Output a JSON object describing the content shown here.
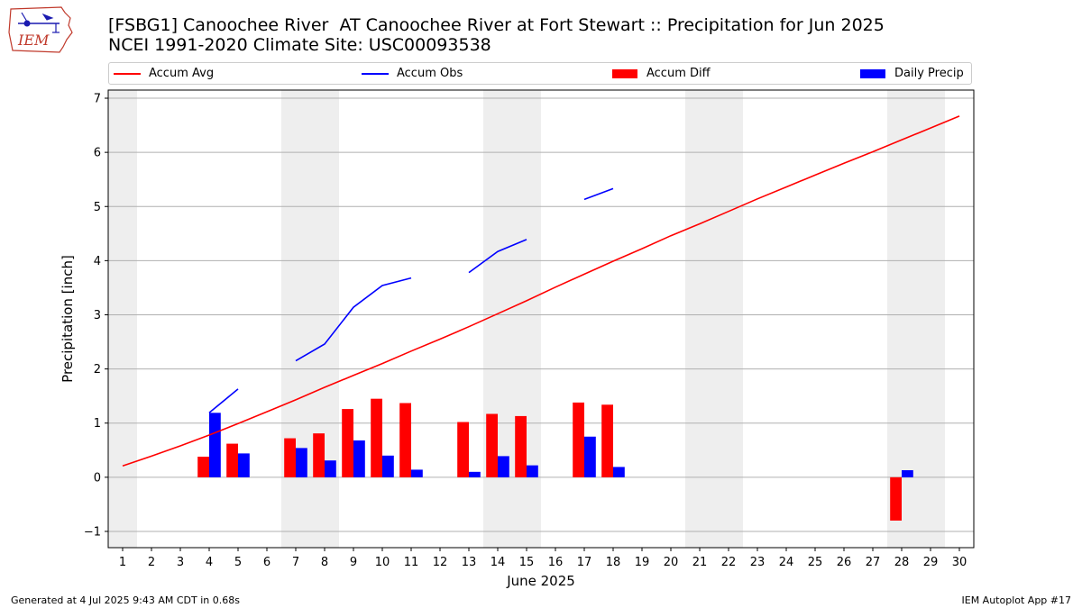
{
  "header": {
    "title_line1": "[FSBG1] Canoochee River  AT Canoochee River at Fort Stewart :: Precipitation for Jun 2025",
    "title_line2": "NCEI 1991-2020 Climate Site: USC00093538"
  },
  "logo": {
    "text": "IEM"
  },
  "footer": {
    "left": "Generated at 4 Jul 2025 9:43 AM CDT in 0.68s",
    "right": "IEM Autoplot App #17"
  },
  "legend": {
    "placement": "top, above plot, spanning full width",
    "items": [
      {
        "label": "Accum Avg",
        "kind": "line",
        "color": "#ff0000"
      },
      {
        "label": "Accum Obs",
        "kind": "line",
        "color": "#0000ff"
      },
      {
        "label": "Accum Diff",
        "kind": "patch",
        "color": "#ff0000"
      },
      {
        "label": "Daily Precip",
        "kind": "patch",
        "color": "#0000ff"
      }
    ]
  },
  "chart_data": {
    "type": "bar",
    "title": "[FSBG1] Canoochee River  AT Canoochee River at Fort Stewart :: Precipitation for Jun 2025",
    "subtitle": "NCEI 1991-2020 Climate Site: USC00093538",
    "xlabel": "June 2025",
    "ylabel": "Precipitation [inch]",
    "x": [
      1,
      2,
      3,
      4,
      5,
      6,
      7,
      8,
      9,
      10,
      11,
      12,
      13,
      14,
      15,
      16,
      17,
      18,
      19,
      20,
      21,
      22,
      23,
      24,
      25,
      26,
      27,
      28,
      29,
      30
    ],
    "xlim": [
      0.5,
      30.5
    ],
    "ylim": [
      -1.3,
      7.15
    ],
    "yticks": [
      -1,
      0,
      1,
      2,
      3,
      4,
      5,
      6,
      7
    ],
    "grid": "horizontal lines at y ticks",
    "weekend_shading": [
      [
        1,
        1
      ],
      [
        7,
        8
      ],
      [
        14,
        15
      ],
      [
        21,
        22
      ],
      [
        28,
        29
      ]
    ],
    "weekend_shading_color": "#eeeeee",
    "series": [
      {
        "name": "Accum Avg",
        "kind": "line",
        "color": "#ff0000",
        "values": [
          0.21,
          0.39,
          0.58,
          0.78,
          0.99,
          1.21,
          1.43,
          1.66,
          1.88,
          2.1,
          2.33,
          2.55,
          2.78,
          3.02,
          3.26,
          3.51,
          3.75,
          3.99,
          4.22,
          4.46,
          4.68,
          4.91,
          5.14,
          5.36,
          5.58,
          5.8,
          6.01,
          6.23,
          6.45,
          6.67
        ]
      },
      {
        "name": "Accum Obs",
        "kind": "line",
        "color": "#0000ff",
        "values": [
          null,
          null,
          null,
          1.19,
          1.63,
          null,
          2.15,
          2.46,
          3.14,
          3.54,
          3.68,
          null,
          3.78,
          4.17,
          4.39,
          null,
          5.13,
          5.33,
          null,
          null,
          null,
          null,
          null,
          null,
          null,
          null,
          null,
          null,
          null,
          null
        ]
      },
      {
        "name": "Accum Diff",
        "kind": "bar",
        "color": "#ff0000",
        "values": [
          null,
          null,
          null,
          0.38,
          0.62,
          null,
          0.72,
          0.81,
          1.26,
          1.45,
          1.37,
          null,
          1.02,
          1.17,
          1.13,
          null,
          1.38,
          1.34,
          null,
          null,
          null,
          null,
          null,
          null,
          null,
          null,
          null,
          -0.8,
          null,
          null
        ]
      },
      {
        "name": "Daily Precip",
        "kind": "bar",
        "color": "#0000ff",
        "values": [
          null,
          null,
          null,
          1.19,
          0.44,
          null,
          0.54,
          0.31,
          0.68,
          0.4,
          0.14,
          null,
          0.1,
          0.39,
          0.22,
          null,
          0.75,
          0.19,
          null,
          null,
          null,
          null,
          null,
          null,
          null,
          null,
          null,
          0.13,
          null,
          null
        ]
      }
    ]
  }
}
